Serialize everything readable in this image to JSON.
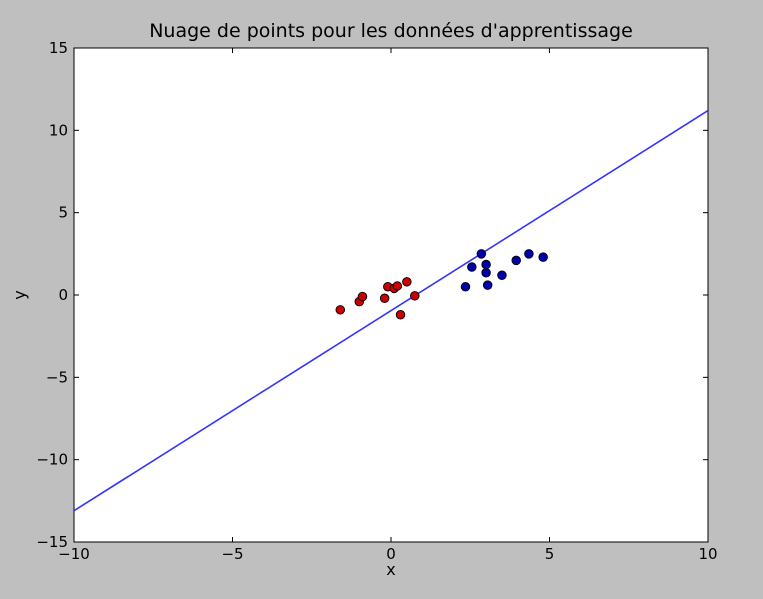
{
  "chart_data": {
    "type": "scatter",
    "title": "Nuage de points pour les données d'apprentissage",
    "xlabel": "x",
    "ylabel": "y",
    "xlim": [
      -10,
      10
    ],
    "ylim": [
      -15,
      15
    ],
    "x_ticks": [
      {
        "value": -10,
        "label": "−10"
      },
      {
        "value": -5,
        "label": "−5"
      },
      {
        "value": 0,
        "label": "0"
      },
      {
        "value": 5,
        "label": "5"
      },
      {
        "value": 10,
        "label": "10"
      }
    ],
    "y_ticks": [
      {
        "value": -15,
        "label": "−15"
      },
      {
        "value": -10,
        "label": "−10"
      },
      {
        "value": -5,
        "label": "−5"
      },
      {
        "value": 0,
        "label": "0"
      },
      {
        "value": 5,
        "label": "5"
      },
      {
        "value": 10,
        "label": "10"
      },
      {
        "value": 15,
        "label": "15"
      }
    ],
    "grid": false,
    "legend": "none",
    "series": [
      {
        "color": "#cc0000",
        "points": [
          {
            "x": -1.6,
            "y": -0.9
          },
          {
            "x": -1.0,
            "y": -0.4
          },
          {
            "x": -0.9,
            "y": -0.1
          },
          {
            "x": -0.2,
            "y": -0.2
          },
          {
            "x": -0.1,
            "y": 0.5
          },
          {
            "x": 0.1,
            "y": 0.4
          },
          {
            "x": 0.2,
            "y": 0.55
          },
          {
            "x": 0.3,
            "y": -1.2
          },
          {
            "x": 0.5,
            "y": 0.8
          },
          {
            "x": 0.75,
            "y": -0.05
          }
        ]
      },
      {
        "color": "#0000aa",
        "points": [
          {
            "x": 2.35,
            "y": 0.5
          },
          {
            "x": 2.55,
            "y": 1.7
          },
          {
            "x": 2.85,
            "y": 2.5
          },
          {
            "x": 3.0,
            "y": 1.35
          },
          {
            "x": 3.0,
            "y": 1.85
          },
          {
            "x": 3.05,
            "y": 0.6
          },
          {
            "x": 3.5,
            "y": 1.2
          },
          {
            "x": 3.95,
            "y": 2.1
          },
          {
            "x": 4.35,
            "y": 2.5
          },
          {
            "x": 4.8,
            "y": 2.3
          }
        ]
      }
    ],
    "lines": [
      {
        "color": "#3333ff",
        "points": [
          {
            "x": -10,
            "y": -13.1
          },
          {
            "x": 10,
            "y": 11.2
          }
        ]
      }
    ]
  }
}
